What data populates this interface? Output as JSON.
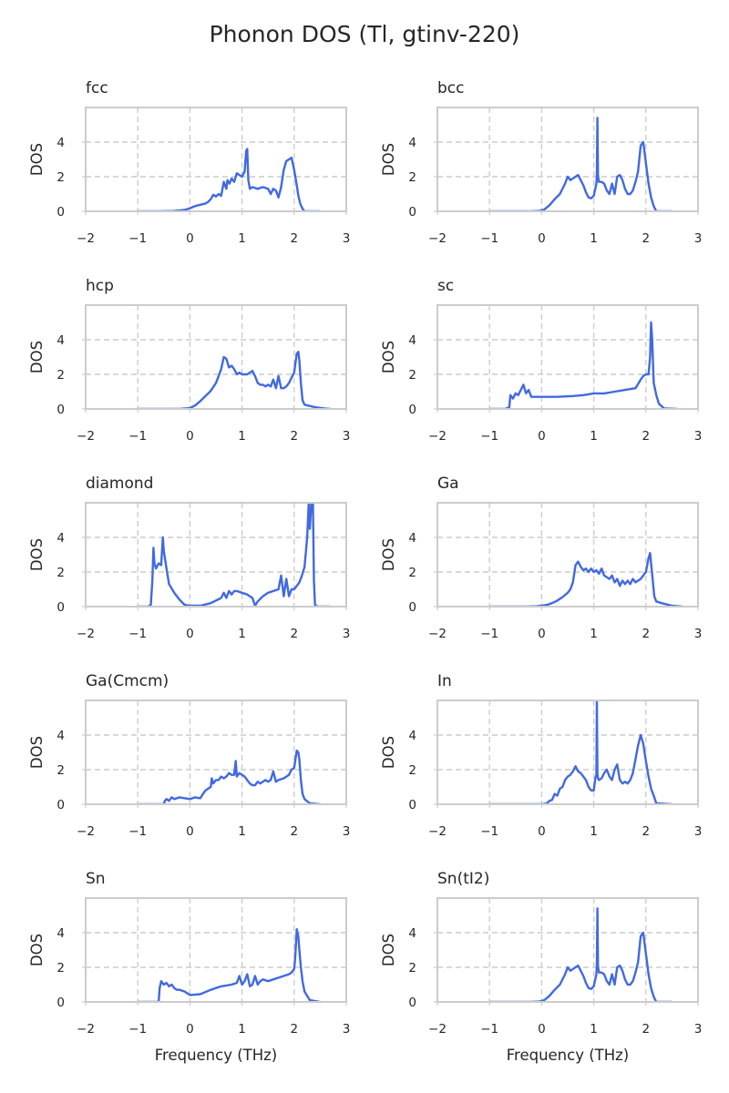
{
  "figure": {
    "title": "Phonon DOS (Tl, gtinv-220)"
  },
  "colors": {
    "line": "#4169E1",
    "grid": "#cccccc",
    "frame": "#cccccc",
    "text": "#262626"
  },
  "chart_data": [
    {
      "type": "line",
      "title": "fcc",
      "xlabel": "",
      "ylabel": "DOS",
      "xlim": [
        -2,
        3
      ],
      "ylim": [
        0,
        6
      ],
      "xticks": [
        -2,
        -1,
        0,
        1,
        2,
        3
      ],
      "yticks": [
        0,
        2,
        4
      ],
      "grid": true,
      "x": [
        -1.0,
        -0.6,
        -0.3,
        -0.1,
        0.0,
        0.1,
        0.2,
        0.3,
        0.35,
        0.4,
        0.45,
        0.5,
        0.55,
        0.6,
        0.65,
        0.7,
        0.72,
        0.76,
        0.8,
        0.85,
        0.9,
        0.95,
        1.0,
        1.05,
        1.08,
        1.1,
        1.12,
        1.15,
        1.2,
        1.3,
        1.4,
        1.5,
        1.55,
        1.6,
        1.65,
        1.7,
        1.75,
        1.8,
        1.85,
        1.9,
        1.95,
        2.0,
        2.05,
        2.08,
        2.12,
        2.18,
        2.22,
        2.3,
        2.5
      ],
      "y": [
        0,
        0,
        0.02,
        0.08,
        0.18,
        0.3,
        0.38,
        0.45,
        0.55,
        0.7,
        0.95,
        0.85,
        1.0,
        0.9,
        1.7,
        1.3,
        1.8,
        1.6,
        1.9,
        1.7,
        2.2,
        2.1,
        2.0,
        2.3,
        3.5,
        3.6,
        1.8,
        1.3,
        1.4,
        1.3,
        1.4,
        1.3,
        1.0,
        1.3,
        1.2,
        0.8,
        1.4,
        2.4,
        2.9,
        3.0,
        3.1,
        2.4,
        1.5,
        0.9,
        0.4,
        0.05,
        0,
        0,
        0
      ]
    },
    {
      "type": "line",
      "title": "bcc",
      "xlabel": "",
      "ylabel": "DOS",
      "xlim": [
        -2,
        3
      ],
      "ylim": [
        0,
        6
      ],
      "xticks": [
        -2,
        -1,
        0,
        1,
        2,
        3
      ],
      "yticks": [
        0,
        2,
        4
      ],
      "grid": true,
      "x": [
        -1.0,
        -0.2,
        -0.05,
        0.05,
        0.15,
        0.25,
        0.35,
        0.45,
        0.5,
        0.55,
        0.6,
        0.65,
        0.7,
        0.75,
        0.8,
        0.85,
        0.9,
        0.95,
        1.0,
        1.05,
        1.06,
        1.07,
        1.08,
        1.09,
        1.1,
        1.15,
        1.2,
        1.25,
        1.3,
        1.35,
        1.4,
        1.45,
        1.5,
        1.55,
        1.6,
        1.65,
        1.7,
        1.75,
        1.8,
        1.85,
        1.9,
        1.95,
        2.0,
        2.05,
        2.1,
        2.15,
        2.2,
        2.5
      ],
      "y": [
        0,
        0,
        0.02,
        0.1,
        0.35,
        0.7,
        1.0,
        1.6,
        2.0,
        1.8,
        1.9,
        2.0,
        2.1,
        1.8,
        1.5,
        1.1,
        0.8,
        0.75,
        0.9,
        1.6,
        2.2,
        5.4,
        2.1,
        1.9,
        1.7,
        1.7,
        1.6,
        1.2,
        1.0,
        1.6,
        1.0,
        2.0,
        2.1,
        1.8,
        1.3,
        1.0,
        1.0,
        1.2,
        1.7,
        2.3,
        3.8,
        4.0,
        2.8,
        1.6,
        0.8,
        0.3,
        0,
        0
      ]
    },
    {
      "type": "line",
      "title": "hcp",
      "xlabel": "",
      "ylabel": "DOS",
      "xlim": [
        -2,
        3
      ],
      "ylim": [
        0,
        6
      ],
      "xticks": [
        -2,
        -1,
        0,
        1,
        2,
        3
      ],
      "yticks": [
        0,
        2,
        4
      ],
      "grid": true,
      "x": [
        -1.0,
        -0.2,
        0.0,
        0.1,
        0.2,
        0.3,
        0.4,
        0.5,
        0.55,
        0.6,
        0.65,
        0.7,
        0.75,
        0.8,
        0.85,
        0.9,
        0.95,
        1.0,
        1.05,
        1.1,
        1.15,
        1.2,
        1.25,
        1.3,
        1.35,
        1.4,
        1.45,
        1.5,
        1.55,
        1.6,
        1.65,
        1.7,
        1.75,
        1.8,
        1.85,
        1.9,
        1.95,
        2.0,
        2.05,
        2.08,
        2.1,
        2.13,
        2.16,
        2.2,
        2.4,
        2.6,
        2.7
      ],
      "y": [
        0,
        0,
        0.05,
        0.2,
        0.45,
        0.75,
        1.05,
        1.5,
        1.9,
        2.3,
        3.0,
        2.9,
        2.4,
        2.5,
        2.3,
        2.0,
        2.1,
        2.0,
        2.0,
        2.0,
        2.1,
        2.2,
        1.9,
        1.5,
        1.4,
        1.4,
        1.3,
        1.4,
        1.3,
        1.7,
        1.2,
        1.9,
        1.2,
        1.2,
        1.3,
        1.5,
        1.8,
        2.1,
        3.2,
        3.3,
        2.8,
        1.5,
        0.5,
        0.25,
        0.1,
        0.02,
        0
      ]
    },
    {
      "type": "line",
      "title": "sc",
      "xlabel": "",
      "ylabel": "DOS",
      "xlim": [
        -2,
        3
      ],
      "ylim": [
        0,
        6
      ],
      "xticks": [
        -2,
        -1,
        0,
        1,
        2,
        3
      ],
      "yticks": [
        0,
        2,
        4
      ],
      "grid": true,
      "x": [
        -1.0,
        -0.7,
        -0.62,
        -0.6,
        -0.55,
        -0.5,
        -0.45,
        -0.4,
        -0.35,
        -0.3,
        -0.25,
        -0.2,
        0.0,
        0.3,
        0.6,
        0.8,
        1.0,
        1.2,
        1.4,
        1.6,
        1.8,
        1.9,
        1.95,
        2.0,
        2.05,
        2.08,
        2.1,
        2.12,
        2.15,
        2.2,
        2.25,
        2.35,
        2.6
      ],
      "y": [
        0,
        0,
        0.1,
        0.8,
        0.6,
        0.9,
        0.8,
        1.1,
        1.4,
        0.9,
        1.1,
        0.7,
        0.7,
        0.7,
        0.75,
        0.8,
        0.9,
        0.9,
        1.0,
        1.1,
        1.2,
        1.7,
        1.9,
        2.0,
        2.0,
        3.0,
        5.0,
        4.0,
        1.5,
        0.8,
        0.3,
        0.03,
        0
      ]
    },
    {
      "type": "line",
      "title": "diamond",
      "xlabel": "",
      "ylabel": "DOS",
      "xlim": [
        -2,
        3
      ],
      "ylim": [
        0,
        6
      ],
      "xticks": [
        -2,
        -1,
        0,
        1,
        2,
        3
      ],
      "yticks": [
        0,
        2,
        4
      ],
      "grid": true,
      "x": [
        -1.0,
        -0.8,
        -0.75,
        -0.72,
        -0.7,
        -0.68,
        -0.65,
        -0.6,
        -0.55,
        -0.52,
        -0.5,
        -0.45,
        -0.4,
        -0.3,
        -0.2,
        -0.1,
        0.0,
        0.2,
        0.4,
        0.6,
        0.65,
        0.7,
        0.75,
        0.8,
        0.85,
        0.9,
        1.0,
        1.1,
        1.2,
        1.25,
        1.3,
        1.4,
        1.5,
        1.6,
        1.7,
        1.75,
        1.8,
        1.85,
        1.9,
        1.95,
        2.0,
        2.05,
        2.1,
        2.15,
        2.2,
        2.25,
        2.28,
        2.3,
        2.33,
        2.36,
        2.38,
        2.4,
        2.45,
        2.7
      ],
      "y": [
        0,
        0,
        0.1,
        1.5,
        3.4,
        2.5,
        2.2,
        2.5,
        2.4,
        4.0,
        3.2,
        2.2,
        1.3,
        0.8,
        0.4,
        0.1,
        0.05,
        0.05,
        0.2,
        0.5,
        0.8,
        0.5,
        0.9,
        0.7,
        0.9,
        0.9,
        0.8,
        0.7,
        0.5,
        0.05,
        0.3,
        0.6,
        0.8,
        0.9,
        1.0,
        1.8,
        0.6,
        1.6,
        0.6,
        1.0,
        1.0,
        1.2,
        1.4,
        1.8,
        2.3,
        4.0,
        6.0,
        4.5,
        6.0,
        6.0,
        1.5,
        0.1,
        0,
        0
      ]
    },
    {
      "type": "line",
      "title": "Ga",
      "xlabel": "",
      "ylabel": "DOS",
      "xlim": [
        -2,
        3
      ],
      "ylim": [
        0,
        6
      ],
      "xticks": [
        -2,
        -1,
        0,
        1,
        2,
        3
      ],
      "yticks": [
        0,
        2,
        4
      ],
      "grid": true,
      "x": [
        -1.0,
        -0.3,
        -0.1,
        0.0,
        0.1,
        0.2,
        0.3,
        0.4,
        0.5,
        0.55,
        0.6,
        0.65,
        0.7,
        0.75,
        0.8,
        0.85,
        0.9,
        0.95,
        1.0,
        1.05,
        1.1,
        1.15,
        1.2,
        1.25,
        1.3,
        1.35,
        1.4,
        1.45,
        1.5,
        1.55,
        1.6,
        1.65,
        1.7,
        1.75,
        1.8,
        1.85,
        1.9,
        1.95,
        2.0,
        2.05,
        2.08,
        2.1,
        2.13,
        2.16,
        2.2,
        2.3,
        2.5,
        2.7
      ],
      "y": [
        0,
        0,
        0.02,
        0.05,
        0.1,
        0.2,
        0.35,
        0.55,
        0.8,
        1.0,
        1.4,
        2.4,
        2.6,
        2.3,
        2.1,
        2.2,
        2.0,
        2.2,
        2.0,
        2.1,
        1.9,
        2.2,
        1.8,
        1.7,
        1.6,
        1.8,
        1.4,
        1.6,
        1.2,
        1.5,
        1.3,
        1.5,
        1.3,
        1.6,
        1.4,
        1.5,
        1.6,
        1.8,
        2.0,
        2.8,
        3.1,
        2.5,
        1.6,
        0.6,
        0.3,
        0.2,
        0.05,
        0
      ]
    },
    {
      "type": "line",
      "title": "Ga(Cmcm)",
      "xlabel": "",
      "ylabel": "DOS",
      "xlim": [
        -2,
        3
      ],
      "ylim": [
        0,
        6
      ],
      "xticks": [
        -2,
        -1,
        0,
        1,
        2,
        3
      ],
      "yticks": [
        0,
        2,
        4
      ],
      "grid": true,
      "x": [
        -1.0,
        -0.5,
        -0.48,
        -0.45,
        -0.4,
        -0.35,
        -0.3,
        -0.2,
        0.0,
        0.1,
        0.2,
        0.25,
        0.3,
        0.35,
        0.4,
        0.42,
        0.45,
        0.5,
        0.55,
        0.6,
        0.65,
        0.7,
        0.75,
        0.8,
        0.85,
        0.88,
        0.9,
        0.95,
        1.0,
        1.05,
        1.1,
        1.15,
        1.2,
        1.25,
        1.3,
        1.35,
        1.4,
        1.45,
        1.5,
        1.55,
        1.6,
        1.65,
        1.7,
        1.8,
        1.9,
        1.95,
        2.0,
        2.05,
        2.08,
        2.1,
        2.13,
        2.16,
        2.2,
        2.3,
        2.5
      ],
      "y": [
        0,
        0,
        0.2,
        0.3,
        0.2,
        0.4,
        0.3,
        0.4,
        0.3,
        0.4,
        0.35,
        0.6,
        0.8,
        0.9,
        1.0,
        1.5,
        1.2,
        1.4,
        1.4,
        1.6,
        1.5,
        1.6,
        1.8,
        1.7,
        1.7,
        2.5,
        1.6,
        1.8,
        1.7,
        1.6,
        1.4,
        1.2,
        1.1,
        1.1,
        1.3,
        1.2,
        1.3,
        1.4,
        1.3,
        1.4,
        1.9,
        1.3,
        1.4,
        1.5,
        1.7,
        2.0,
        2.1,
        3.1,
        3.0,
        2.6,
        1.4,
        0.6,
        0.3,
        0.05,
        0
      ]
    },
    {
      "type": "line",
      "title": "In",
      "xlabel": "",
      "ylabel": "DOS",
      "xlim": [
        -2,
        3
      ],
      "ylim": [
        0,
        6
      ],
      "xticks": [
        -2,
        -1,
        0,
        1,
        2,
        3
      ],
      "yticks": [
        0,
        2,
        4
      ],
      "grid": true,
      "x": [
        -1.0,
        0.0,
        0.1,
        0.15,
        0.2,
        0.25,
        0.3,
        0.35,
        0.4,
        0.45,
        0.5,
        0.55,
        0.6,
        0.65,
        0.7,
        0.75,
        0.8,
        0.85,
        0.9,
        0.95,
        1.0,
        1.03,
        1.05,
        1.06,
        1.07,
        1.08,
        1.1,
        1.15,
        1.2,
        1.25,
        1.3,
        1.35,
        1.4,
        1.45,
        1.5,
        1.55,
        1.6,
        1.65,
        1.7,
        1.75,
        1.8,
        1.85,
        1.9,
        1.95,
        2.0,
        2.05,
        2.1,
        2.15,
        2.2,
        2.5
      ],
      "y": [
        0,
        0,
        0.05,
        0.2,
        0.25,
        0.6,
        0.5,
        0.9,
        1.0,
        1.4,
        1.6,
        1.7,
        1.9,
        2.2,
        1.9,
        1.8,
        1.6,
        1.4,
        1.0,
        0.8,
        0.8,
        1.5,
        1.7,
        6.0,
        1.8,
        1.5,
        1.4,
        1.5,
        1.8,
        2.0,
        1.6,
        1.4,
        2.0,
        2.3,
        1.4,
        1.2,
        1.3,
        1.2,
        1.4,
        1.8,
        2.6,
        3.4,
        4.0,
        3.5,
        2.5,
        1.6,
        0.9,
        0.5,
        0.05,
        0
      ]
    },
    {
      "type": "line",
      "title": "Sn",
      "xlabel": "Frequency (THz)",
      "ylabel": "DOS",
      "xlim": [
        -2,
        3
      ],
      "ylim": [
        0,
        6
      ],
      "xticks": [
        -2,
        -1,
        0,
        1,
        2,
        3
      ],
      "yticks": [
        0,
        2,
        4
      ],
      "grid": true,
      "x": [
        -1.0,
        -0.6,
        -0.58,
        -0.55,
        -0.5,
        -0.45,
        -0.4,
        -0.35,
        -0.3,
        -0.25,
        -0.2,
        -0.1,
        0.0,
        0.2,
        0.4,
        0.6,
        0.8,
        0.9,
        0.95,
        1.0,
        1.05,
        1.1,
        1.15,
        1.2,
        1.25,
        1.3,
        1.35,
        1.4,
        1.5,
        1.6,
        1.7,
        1.8,
        1.9,
        1.95,
        2.0,
        2.02,
        2.05,
        2.08,
        2.1,
        2.13,
        2.16,
        2.2,
        2.3,
        2.5
      ],
      "y": [
        0,
        0,
        0.8,
        1.2,
        1.0,
        1.1,
        0.9,
        1.0,
        0.8,
        0.7,
        0.7,
        0.6,
        0.4,
        0.45,
        0.7,
        0.9,
        1.0,
        1.1,
        1.5,
        1.0,
        1.2,
        1.6,
        0.9,
        1.0,
        1.5,
        1.0,
        1.2,
        1.3,
        1.2,
        1.3,
        1.4,
        1.5,
        1.6,
        1.7,
        1.9,
        2.5,
        4.2,
        3.8,
        3.0,
        2.0,
        1.2,
        0.6,
        0.1,
        0
      ]
    },
    {
      "type": "line",
      "title": "Sn(tI2)",
      "xlabel": "Frequency (THz)",
      "ylabel": "DOS",
      "xlim": [
        -2,
        3
      ],
      "ylim": [
        0,
        6
      ],
      "xticks": [
        -2,
        -1,
        0,
        1,
        2,
        3
      ],
      "yticks": [
        0,
        2,
        4
      ],
      "grid": true,
      "x": [
        -1.0,
        -0.2,
        -0.05,
        0.05,
        0.15,
        0.25,
        0.35,
        0.45,
        0.5,
        0.55,
        0.6,
        0.65,
        0.7,
        0.75,
        0.8,
        0.85,
        0.9,
        0.95,
        1.0,
        1.05,
        1.06,
        1.07,
        1.08,
        1.09,
        1.1,
        1.15,
        1.2,
        1.25,
        1.3,
        1.35,
        1.4,
        1.45,
        1.5,
        1.55,
        1.6,
        1.65,
        1.7,
        1.75,
        1.8,
        1.85,
        1.9,
        1.95,
        2.0,
        2.05,
        2.1,
        2.15,
        2.2,
        2.5
      ],
      "y": [
        0,
        0,
        0.02,
        0.1,
        0.35,
        0.7,
        1.0,
        1.6,
        2.0,
        1.8,
        1.9,
        2.0,
        2.1,
        1.8,
        1.5,
        1.1,
        0.8,
        0.75,
        0.9,
        1.6,
        2.2,
        5.4,
        2.1,
        1.9,
        1.7,
        1.7,
        1.6,
        1.2,
        1.0,
        1.6,
        1.0,
        2.0,
        2.1,
        1.8,
        1.3,
        1.0,
        1.0,
        1.2,
        1.7,
        2.3,
        3.8,
        4.0,
        2.8,
        1.6,
        0.8,
        0.3,
        0,
        0
      ]
    }
  ]
}
